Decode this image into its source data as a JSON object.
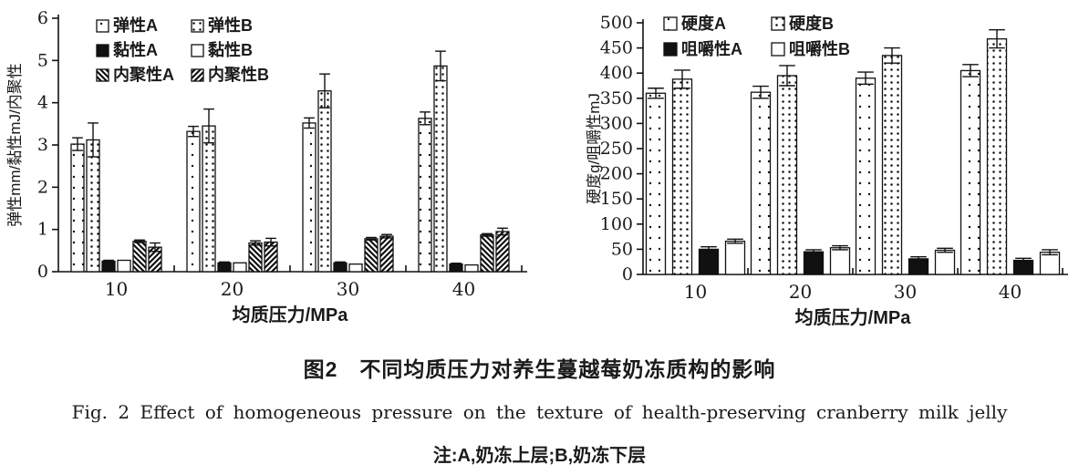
{
  "figure": {
    "caption_zh": "图2　不同均质压力对养生蔓越莓奶冻质构的影响",
    "caption_en": "Fig. 2  Effect of homogeneous pressure on the texture of health-preserving cranberry milk jelly",
    "note": "注:A,奶冻上层;B,奶冻下层"
  },
  "chart_data": [
    {
      "type": "bar",
      "title": "",
      "categories": [
        "10",
        "20",
        "30",
        "40"
      ],
      "xlabel": "均质压力/MPa",
      "ylabel": "弹性mm/黏性mJ/内聚性",
      "ylim": [
        0,
        6
      ],
      "ytick": 1,
      "grid": false,
      "legend_position": "top-left-inside",
      "legend_columns": 2,
      "series": [
        {
          "name": "弹性A",
          "fill": "dotA",
          "values": [
            3.02,
            3.32,
            3.52,
            3.63
          ],
          "errors": [
            0.15,
            0.12,
            0.12,
            0.15
          ]
        },
        {
          "name": "弹性B",
          "fill": "dotB",
          "values": [
            3.12,
            3.45,
            4.28,
            4.87
          ],
          "errors": [
            0.4,
            0.4,
            0.4,
            0.35
          ]
        },
        {
          "name": "黏性A",
          "fill": "solid",
          "values": [
            0.25,
            0.21,
            0.21,
            0.18
          ],
          "errors": [
            0.02,
            0.02,
            0.02,
            0.02
          ]
        },
        {
          "name": "黏性B",
          "fill": "open",
          "values": [
            0.27,
            0.21,
            0.18,
            0.16
          ],
          "errors": [
            0,
            0,
            0,
            0
          ]
        },
        {
          "name": "内聚性A",
          "fill": "hatchA",
          "values": [
            0.72,
            0.68,
            0.78,
            0.87
          ],
          "errors": [
            0.03,
            0.05,
            0.03,
            0.03
          ]
        },
        {
          "name": "内聚性B",
          "fill": "hatchB",
          "values": [
            0.58,
            0.7,
            0.84,
            0.95
          ],
          "errors": [
            0.1,
            0.09,
            0.04,
            0.08
          ]
        }
      ]
    },
    {
      "type": "bar",
      "title": "",
      "categories": [
        "10",
        "20",
        "30",
        "40"
      ],
      "xlabel": "均质压力/MPa",
      "ylabel": "硬度g/咀嚼性mJ",
      "ylim": [
        0,
        500
      ],
      "ytick": 50,
      "grid": false,
      "legend_position": "top-left-inside",
      "legend_columns": 2,
      "series": [
        {
          "name": "硬度A",
          "fill": "dotA",
          "values": [
            360,
            362,
            390,
            405
          ],
          "errors": [
            10,
            12,
            12,
            12
          ]
        },
        {
          "name": "硬度B",
          "fill": "dotB",
          "values": [
            388,
            395,
            435,
            468
          ],
          "errors": [
            18,
            20,
            15,
            18
          ]
        },
        {
          "name": "咀嚼性A",
          "fill": "solid",
          "values": [
            50,
            45,
            31,
            28
          ],
          "errors": [
            5,
            4,
            4,
            4
          ]
        },
        {
          "name": "咀嚼性B",
          "fill": "open",
          "values": [
            66,
            53,
            48,
            44
          ],
          "errors": [
            4,
            4,
            4,
            5
          ]
        }
      ]
    }
  ]
}
